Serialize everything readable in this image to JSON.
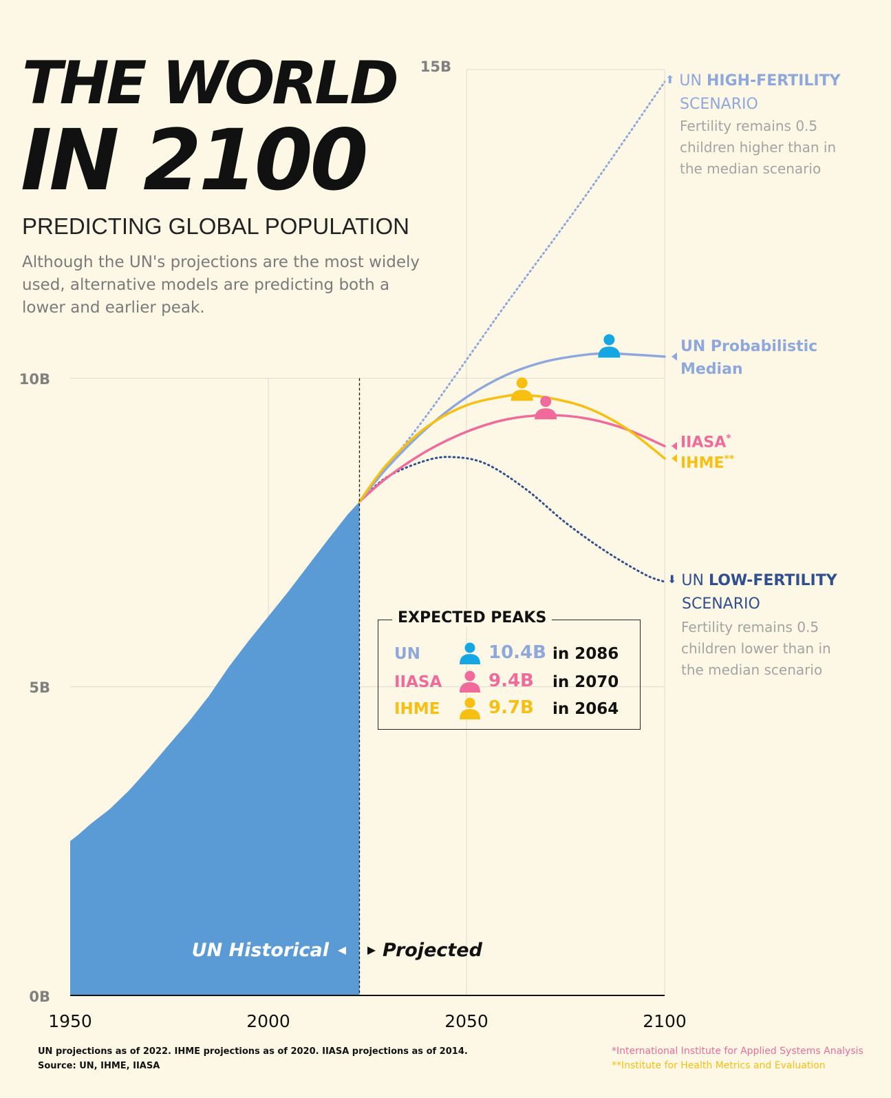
{
  "title_line1": "THE WORLD",
  "title_line2": "IN 2100",
  "subtitle": "PREDICTING GLOBAL POPULATION",
  "description": "Although the UN's projections are the most widely used, alternative models are predicting both a lower and earlier peak.",
  "colors": {
    "background": "#fdf8e6",
    "historical": "#5b9bd5",
    "un_median": "#8fa8dc",
    "iiasa": "#f06b9b",
    "ihme": "#f7bf12",
    "low_fertility": "#2f4f8f",
    "high_fertility": "#8fa8dc",
    "icon_un": "#14a7e3"
  },
  "labels": {
    "historical": "UN Historical",
    "projected": "Projected",
    "high_prefix": "UN ",
    "high_bold": "HIGH-FERTILITY",
    "high_scenario": "SCENARIO",
    "high_note": "Fertility remains 0.5 children higher than in the median scenario",
    "median_line1": "UN Probabilistic",
    "median_line2": "Median",
    "iiasa": "IIASA",
    "iiasa_mark": "*",
    "ihme": "IHME",
    "ihme_mark": "**",
    "low_prefix": "UN ",
    "low_bold": "LOW-FERTILITY",
    "low_scenario": "SCENARIO",
    "low_note": "Fertility remains 0.5 children lower than in the median scenario"
  },
  "peaks": {
    "title": "EXPECTED PEAKS",
    "rows": [
      {
        "name": "UN",
        "value": "10.4B",
        "year": "in 2086",
        "icon": "person-icon"
      },
      {
        "name": "IIASA",
        "value": "9.4B",
        "year": "in 2070",
        "icon": "person-icon"
      },
      {
        "name": "IHME",
        "value": "9.7B",
        "year": "in 2064",
        "icon": "person-icon"
      }
    ]
  },
  "footer": {
    "line1": "UN projections as of 2022.  IHME projections as of 2020.  IIASA projections as of 2014.",
    "line2": "Source: UN, IHME, IIASA",
    "note1": "*International Institute for Applied Systems Analysis",
    "note2": "**Institute for Health Metrics and Evaluation"
  },
  "chart_data": {
    "type": "area",
    "xlabel": "",
    "ylabel": "",
    "xlim": [
      1950,
      2100
    ],
    "ylim": [
      0,
      15
    ],
    "x_ticks": [
      1950,
      2000,
      2050,
      2100
    ],
    "x_tick_labels": [
      "1950",
      "2000",
      "2050",
      "2100"
    ],
    "y_ticks": [
      0,
      5,
      10,
      15
    ],
    "y_tick_labels": [
      "0B",
      "5B",
      "10B",
      "15B"
    ],
    "grid": true,
    "divider_year": 2023,
    "series": [
      {
        "name": "UN Historical",
        "style": "area",
        "x": [
          1950,
          1952,
          1955,
          1960,
          1965,
          1970,
          1975,
          1980,
          1985,
          1990,
          1995,
          2000,
          2005,
          2010,
          2015,
          2020,
          2023
        ],
        "values": [
          2.5,
          2.6,
          2.77,
          3.02,
          3.33,
          3.69,
          4.07,
          4.44,
          4.85,
          5.32,
          5.74,
          6.14,
          6.54,
          6.96,
          7.38,
          7.79,
          8.0
        ]
      },
      {
        "name": "UN Probabilistic Median",
        "style": "line",
        "x": [
          2023,
          2030,
          2040,
          2050,
          2060,
          2070,
          2080,
          2086,
          2090,
          2100
        ],
        "values": [
          8.0,
          8.55,
          9.19,
          9.69,
          10.05,
          10.27,
          10.38,
          10.4,
          10.39,
          10.35
        ]
      },
      {
        "name": "IIASA",
        "style": "line",
        "x": [
          2023,
          2030,
          2040,
          2050,
          2060,
          2070,
          2080,
          2090,
          2100
        ],
        "values": [
          8.0,
          8.39,
          8.82,
          9.13,
          9.33,
          9.4,
          9.35,
          9.18,
          8.9
        ]
      },
      {
        "name": "IHME",
        "style": "line",
        "x": [
          2023,
          2030,
          2040,
          2050,
          2060,
          2064,
          2070,
          2080,
          2090,
          2100
        ],
        "values": [
          8.0,
          8.61,
          9.21,
          9.56,
          9.71,
          9.72,
          9.69,
          9.53,
          9.2,
          8.7
        ]
      },
      {
        "name": "UN High-Fertility Scenario",
        "style": "dotted",
        "x": [
          2023,
          2040,
          2060,
          2080,
          2100
        ],
        "values": [
          8.0,
          9.4,
          11.2,
          12.95,
          14.8
        ]
      },
      {
        "name": "UN Low-Fertility Scenario",
        "style": "dotted",
        "x": [
          2023,
          2030,
          2040,
          2047,
          2055,
          2065,
          2075,
          2085,
          2095,
          2100
        ],
        "values": [
          8.0,
          8.4,
          8.67,
          8.72,
          8.61,
          8.2,
          7.66,
          7.2,
          6.82,
          6.7
        ]
      }
    ],
    "peak_markers": [
      {
        "series": "UN Probabilistic Median",
        "x": 2086,
        "y": 10.4
      },
      {
        "series": "IIASA",
        "x": 2070,
        "y": 9.4
      },
      {
        "series": "IHME",
        "x": 2064,
        "y": 9.7
      }
    ]
  }
}
